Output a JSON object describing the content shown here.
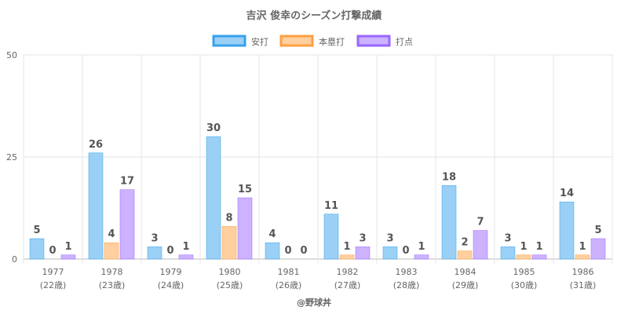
{
  "chart_data": {
    "type": "bar",
    "title": "吉沢 俊幸のシーズン打撃成績",
    "categories": [
      "1977",
      "1978",
      "1979",
      "1980",
      "1981",
      "1982",
      "1983",
      "1984",
      "1985",
      "1986"
    ],
    "sublabels": [
      "(22歳)",
      "(23歳)",
      "(24歳)",
      "(25歳)",
      "(26歳)",
      "(27歳)",
      "(28歳)",
      "(29歳)",
      "(30歳)",
      "(31歳)"
    ],
    "series": [
      {
        "name": "安打",
        "values": [
          5,
          26,
          3,
          30,
          4,
          11,
          3,
          18,
          3,
          14
        ],
        "fill": "#9ad0f5",
        "border": "#36a2eb"
      },
      {
        "name": "本塁打",
        "values": [
          0,
          4,
          0,
          8,
          0,
          1,
          0,
          2,
          1,
          1
        ],
        "fill": "#ffcf9f",
        "border": "#ff9f40"
      },
      {
        "name": "打点",
        "values": [
          1,
          17,
          1,
          15,
          0,
          3,
          1,
          7,
          1,
          5
        ],
        "fill": "#ccb2ff",
        "border": "#9966ff"
      }
    ],
    "ylim": [
      0,
      50
    ],
    "yticks": [
      0,
      25,
      50
    ],
    "legend": "top",
    "grid": true
  },
  "footer": "@野球丼"
}
